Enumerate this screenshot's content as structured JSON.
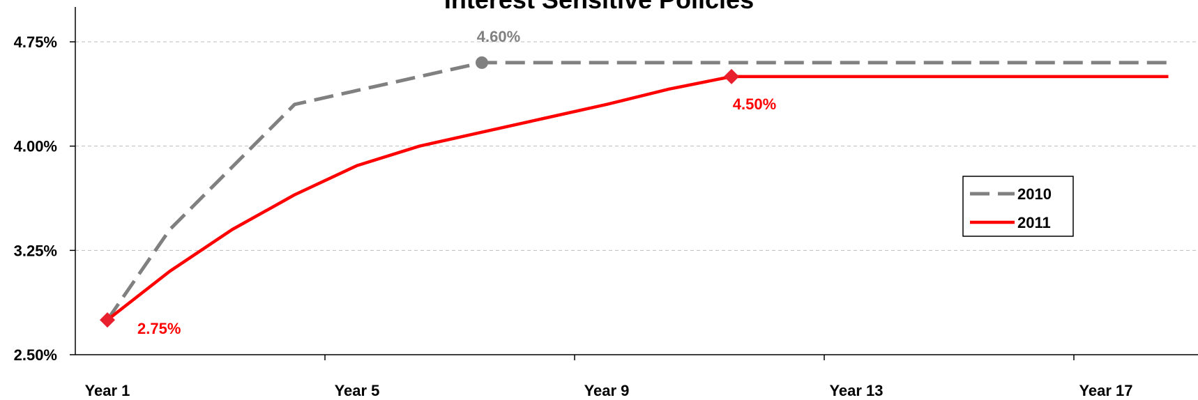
{
  "chart_data": {
    "type": "line",
    "title": "Interest Sensitive Policies",
    "x": [
      1,
      2,
      3,
      4,
      5,
      6,
      7,
      8,
      9,
      10,
      11,
      12,
      13,
      14,
      15,
      16,
      17,
      18
    ],
    "x_tick_labels": [
      {
        "x": 1,
        "label": "Year 1"
      },
      {
        "x": 5,
        "label": "Year 5"
      },
      {
        "x": 9,
        "label": "Year 9"
      },
      {
        "x": 13,
        "label": "Year 13"
      },
      {
        "x": 17,
        "label": "Year 17"
      }
    ],
    "y_ticks": [
      {
        "value": 2.5,
        "label": "2.50%"
      },
      {
        "value": 3.25,
        "label": "3.25%"
      },
      {
        "value": 4.0,
        "label": "4.00%"
      },
      {
        "value": 4.75,
        "label": "4.75%"
      }
    ],
    "ylim": [
      2.5,
      4.75
    ],
    "grid": "horizontal-dashed",
    "legend_position": "right",
    "series": [
      {
        "name": "2010",
        "color": "#808080",
        "style": "dashed",
        "values": [
          2.75,
          3.4,
          3.85,
          4.3,
          4.4,
          4.5,
          4.6,
          4.6,
          4.6,
          4.6,
          4.6,
          4.6,
          4.6,
          4.6,
          4.6,
          4.6,
          4.6,
          4.6
        ],
        "marker": {
          "x": 7,
          "shape": "circle"
        },
        "data_label": {
          "x": 7,
          "text": "4.60%"
        }
      },
      {
        "name": "2011",
        "color": "#ff0000",
        "style": "solid",
        "values": [
          2.75,
          3.1,
          3.4,
          3.65,
          3.86,
          4.0,
          4.1,
          4.2,
          4.3,
          4.41,
          4.5,
          4.5,
          4.5,
          4.5,
          4.5,
          4.5,
          4.5,
          4.5
        ],
        "marker": [
          {
            "x": 1,
            "shape": "diamond"
          },
          {
            "x": 11,
            "shape": "diamond"
          }
        ],
        "data_labels": [
          {
            "x": 1,
            "text": "2.75%"
          },
          {
            "x": 11,
            "text": "4.50%"
          }
        ]
      }
    ]
  }
}
